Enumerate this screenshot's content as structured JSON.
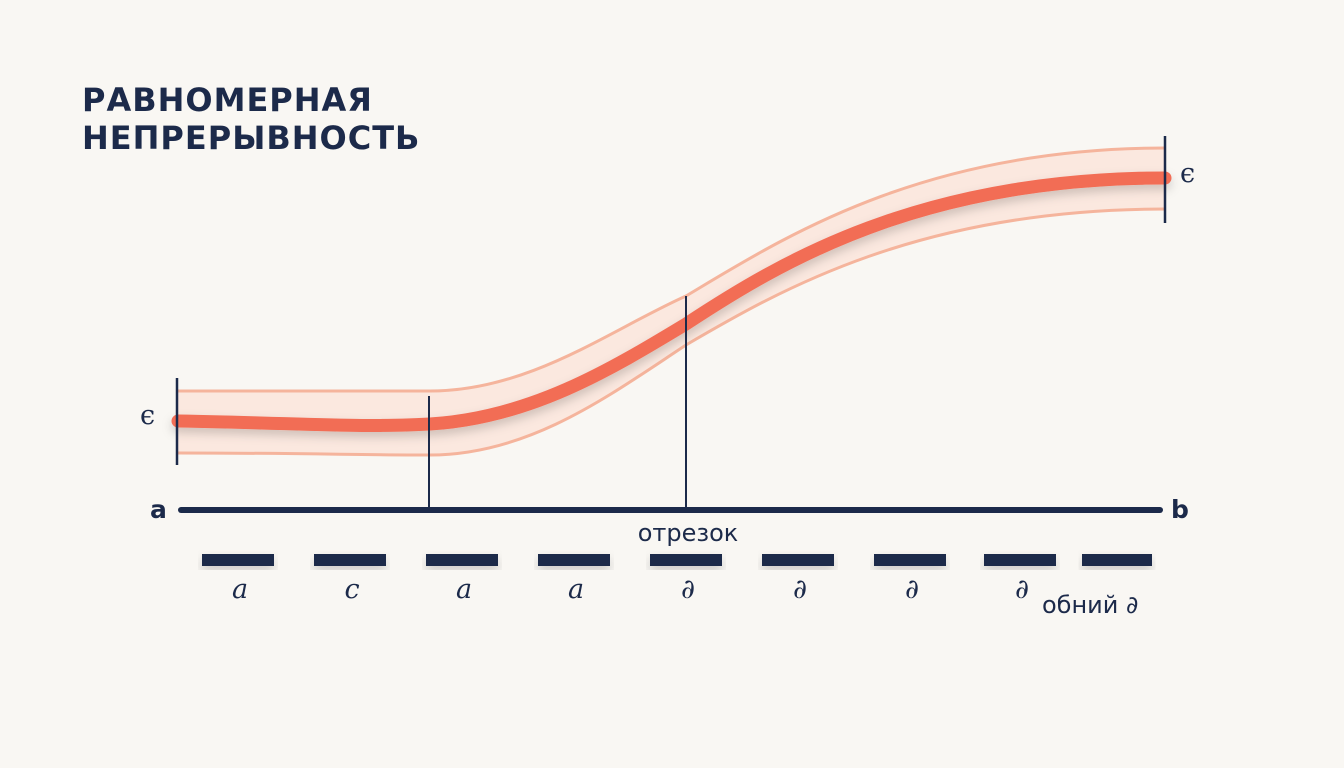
{
  "title": [
    "РАВНОМЕРНАЯ",
    "НЕПРЕРЫВНОСТЬ"
  ],
  "epsilon_left": "ϵ",
  "epsilon_right": "ϵ",
  "axis": {
    "start_label": "a",
    "end_label": "b",
    "segment_label": "отрезок"
  },
  "subintervals": [
    "a",
    "c",
    "a",
    "a",
    "∂",
    "∂",
    "∂",
    "∂",
    ""
  ],
  "last_note": "обний ∂",
  "colors": {
    "curve": "#f26d54",
    "band": "#f5b49c",
    "band_fill": "#fbe3d9",
    "axis": "#1c2a4a"
  }
}
